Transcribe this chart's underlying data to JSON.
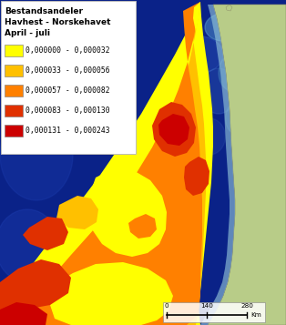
{
  "title_lines": [
    "Bestandsandeler",
    "Havhest - Norskehavet",
    "April - juli"
  ],
  "legend_entries": [
    {
      "label": "0,000000 - 0,000032",
      "color": "#FFFF00"
    },
    {
      "label": "0,000033 - 0,000056",
      "color": "#FFC000"
    },
    {
      "label": "0,000057 - 0,000082",
      "color": "#FF8000"
    },
    {
      "label": "0,000083 - 0,000130",
      "color": "#E03000"
    },
    {
      "label": "0,000131 - 0,000243",
      "color": "#CC0000"
    }
  ],
  "ocean_deep": "#0a2288",
  "ocean_mid": "#1a3aaa",
  "ocean_light": "#3366cc",
  "ocean_lighter": "#5588cc",
  "ocean_coastal": "#88bbdd",
  "land_color": "#b8cc88",
  "land_color2": "#c8d898",
  "land_gray": "#ccccaa",
  "coast_water": "#99ccdd",
  "figsize": [
    3.14,
    3.57
  ],
  "dpi": 100,
  "scale_ticks": [
    0,
    140,
    280
  ]
}
